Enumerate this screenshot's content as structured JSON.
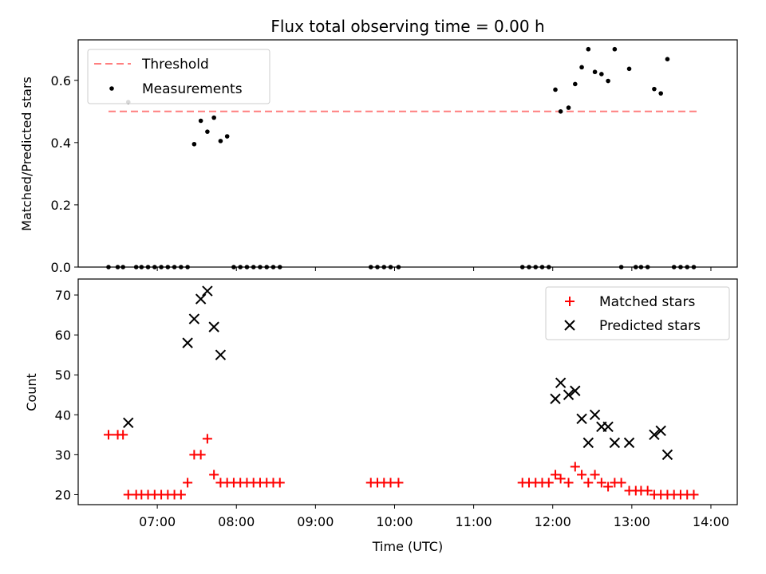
{
  "chart_data": [
    {
      "type": "scatter",
      "title": "Flux total observing time = 0.00 h",
      "ylabel": "Matched/Predicted stars",
      "xlim": [
        "06:00",
        "14:20"
      ],
      "ylim": [
        0,
        0.73
      ],
      "yticks": [
        "0.0",
        "0.2",
        "0.4",
        "0.6"
      ],
      "ytick_values": [
        0,
        0.2,
        0.4,
        0.6
      ],
      "legend_position": "upper-left",
      "threshold": {
        "name": "Threshold",
        "y": 0.5,
        "x_range": [
          "06:23",
          "13:50"
        ],
        "color": "#ff7f7f"
      },
      "series": [
        {
          "name": "Measurements",
          "color": "#000000",
          "x": [
            "06:23",
            "06:30",
            "06:34",
            "06:38",
            "06:44",
            "06:48",
            "06:53",
            "06:58",
            "07:03",
            "07:08",
            "07:13",
            "07:18",
            "07:23",
            "07:28",
            "07:33",
            "07:38",
            "07:43",
            "07:48",
            "07:53",
            "07:58",
            "08:03",
            "08:08",
            "08:13",
            "08:18",
            "08:23",
            "08:28",
            "08:33",
            "09:42",
            "09:47",
            "09:52",
            "09:57",
            "10:03",
            "11:37",
            "11:42",
            "11:47",
            "11:52",
            "11:57",
            "12:02",
            "12:06",
            "12:12",
            "12:17",
            "12:22",
            "12:27",
            "12:32",
            "12:37",
            "12:42",
            "12:47",
            "12:52",
            "12:58",
            "13:03",
            "13:07",
            "13:12",
            "13:17",
            "13:22",
            "13:27",
            "13:32",
            "13:37",
            "13:42",
            "13:47"
          ],
          "y": [
            0,
            0,
            0,
            0.53,
            0,
            0,
            0,
            0,
            0,
            0,
            0,
            0,
            0,
            0.395,
            0.47,
            0.435,
            0.48,
            0.405,
            0.42,
            0,
            0,
            0,
            0,
            0,
            0,
            0,
            0,
            0,
            0,
            0,
            0,
            0,
            0,
            0,
            0,
            0,
            0,
            0.57,
            0.5,
            0.512,
            0.588,
            0.642,
            0.7,
            0.627,
            0.62,
            0.598,
            0.7,
            0,
            0.637,
            0,
            0,
            0,
            0.572,
            0.558,
            0.668,
            0,
            0,
            0,
            0
          ]
        }
      ]
    },
    {
      "type": "scatter",
      "xlabel": "Time (UTC)",
      "ylabel": "Count",
      "xlim": [
        "06:00",
        "14:20"
      ],
      "ylim": [
        17.5,
        74
      ],
      "xticks": [
        "07:00",
        "08:00",
        "09:00",
        "10:00",
        "11:00",
        "12:00",
        "13:00",
        "14:00"
      ],
      "yticks": [
        "20",
        "30",
        "40",
        "50",
        "60",
        "70"
      ],
      "ytick_values": [
        20,
        30,
        40,
        50,
        60,
        70
      ],
      "legend_position": "upper-right",
      "series": [
        {
          "name": "Matched stars",
          "marker": "plus",
          "color": "#ff0000",
          "x": [
            "06:23",
            "06:30",
            "06:34",
            "06:38",
            "06:44",
            "06:48",
            "06:53",
            "06:58",
            "07:03",
            "07:08",
            "07:13",
            "07:18",
            "07:23",
            "07:28",
            "07:33",
            "07:38",
            "07:43",
            "07:48",
            "07:53",
            "07:58",
            "08:03",
            "08:08",
            "08:13",
            "08:18",
            "08:23",
            "08:28",
            "08:33",
            "09:42",
            "09:47",
            "09:52",
            "09:57",
            "10:03",
            "11:37",
            "11:42",
            "11:47",
            "11:52",
            "11:57",
            "12:02",
            "12:06",
            "12:12",
            "12:17",
            "12:22",
            "12:27",
            "12:32",
            "12:37",
            "12:42",
            "12:47",
            "12:52",
            "12:58",
            "13:03",
            "13:07",
            "13:12",
            "13:17",
            "13:22",
            "13:27",
            "13:32",
            "13:37",
            "13:42",
            "13:47"
          ],
          "y": [
            35,
            35,
            35,
            20,
            20,
            20,
            20,
            20,
            20,
            20,
            20,
            20,
            23,
            30,
            30,
            34,
            25,
            23,
            23,
            23,
            23,
            23,
            23,
            23,
            23,
            23,
            23,
            23,
            23,
            23,
            23,
            23,
            23,
            23,
            23,
            23,
            23,
            25,
            24,
            23,
            27,
            25,
            23,
            25,
            23,
            22,
            23,
            23,
            21,
            21,
            21,
            21,
            20,
            20,
            20,
            20,
            20,
            20,
            20
          ]
        },
        {
          "name": "Predicted stars",
          "marker": "x",
          "color": "#000000",
          "x": [
            "06:38",
            "07:23",
            "07:28",
            "07:33",
            "07:38",
            "07:43",
            "07:48",
            "12:02",
            "12:06",
            "12:12",
            "12:17",
            "12:22",
            "12:27",
            "12:32",
            "12:37",
            "12:42",
            "12:47",
            "12:58",
            "13:17",
            "13:22",
            "13:27"
          ],
          "y": [
            38,
            58,
            64,
            69,
            71,
            62,
            55,
            44,
            48,
            45,
            46,
            39,
            33,
            40,
            37,
            37,
            33,
            33,
            35,
            36,
            30
          ]
        }
      ]
    }
  ]
}
